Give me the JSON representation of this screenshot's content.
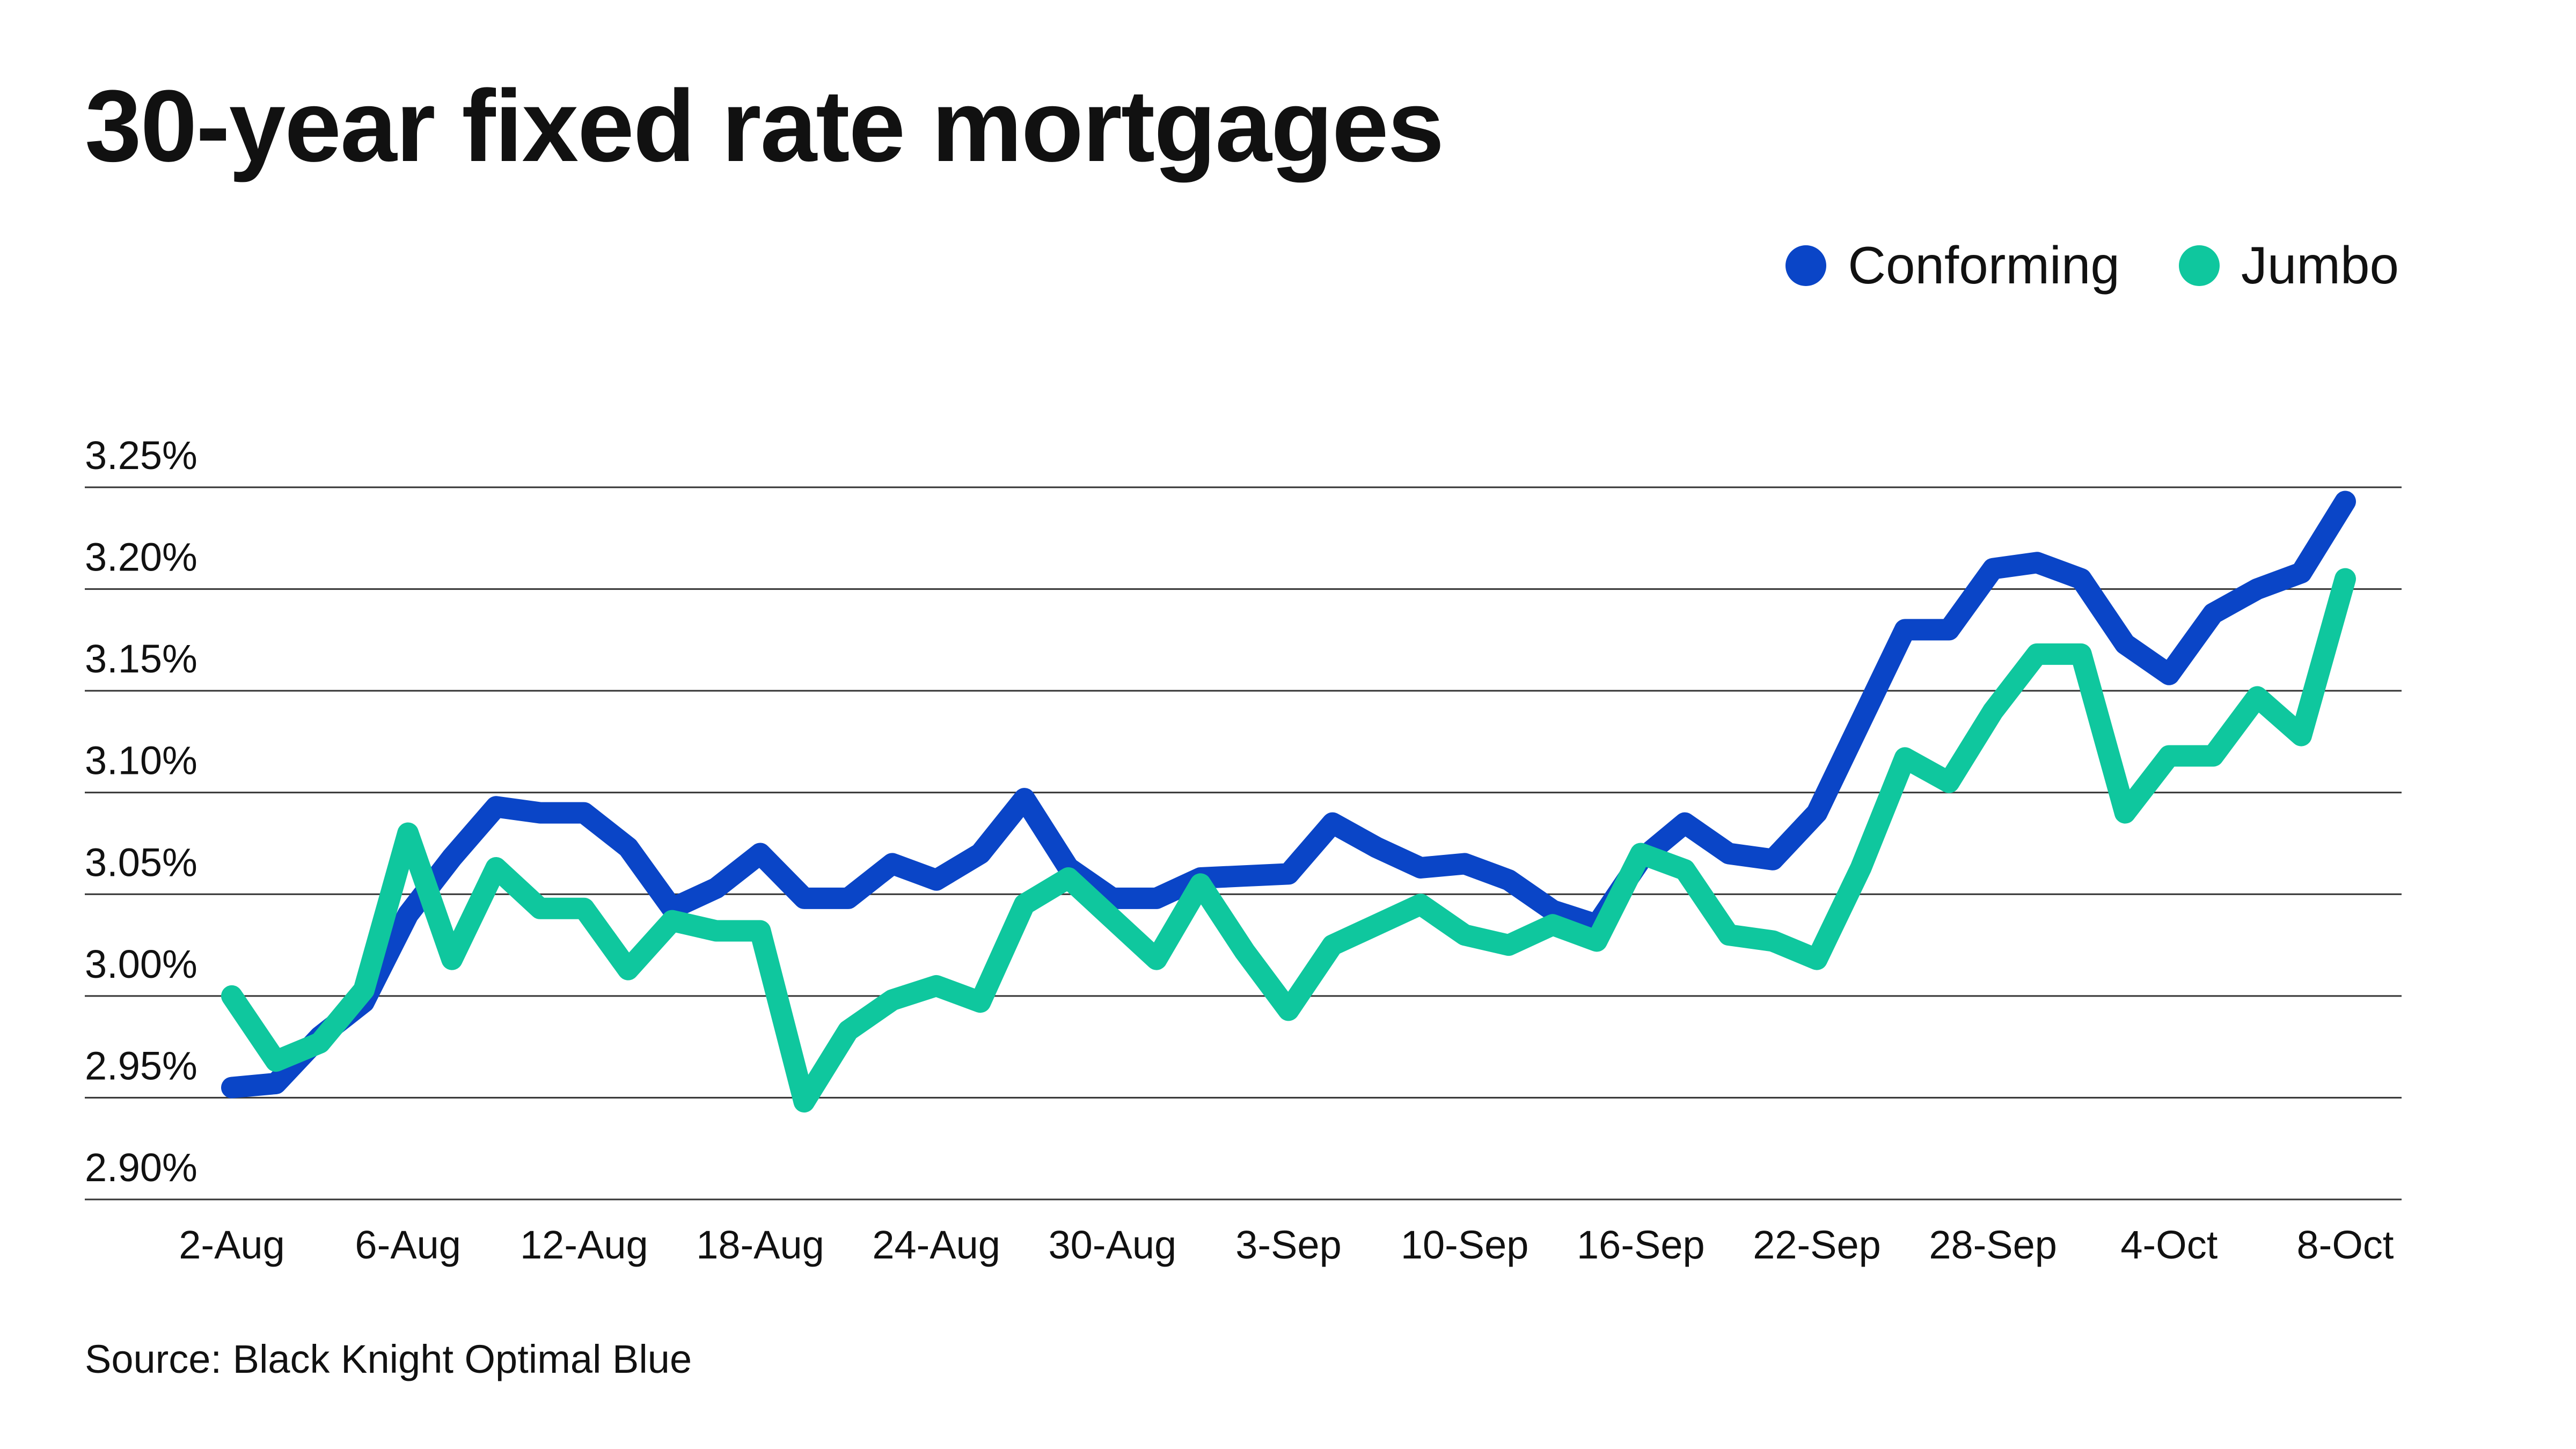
{
  "title": "30-year fixed rate mortgages",
  "source": "Source: Black Knight Optimal Blue",
  "colors": {
    "conforming": "#0a45c7",
    "jumbo": "#0fc79e",
    "grid": "#333333"
  },
  "chart_data": {
    "type": "line",
    "title": "30-year fixed rate mortgages",
    "xlabel": "",
    "ylabel": "",
    "ylim": [
      2.9,
      3.25
    ],
    "yticks": [
      2.9,
      2.95,
      3.0,
      3.05,
      3.1,
      3.15,
      3.2,
      3.25
    ],
    "ytick_labels": [
      "2.90%",
      "2.95%",
      "3.00%",
      "3.05%",
      "3.10%",
      "3.15%",
      "3.20%",
      "3.25%"
    ],
    "xtick_labels": [
      "2-Aug",
      "6-Aug",
      "12-Aug",
      "18-Aug",
      "24-Aug",
      "30-Aug",
      "3-Sep",
      "10-Sep",
      "16-Sep",
      "22-Sep",
      "28-Sep",
      "4-Oct",
      "8-Oct"
    ],
    "legend": "top-right",
    "grid": true,
    "x": [
      "2-Aug",
      "3-Aug",
      "4-Aug",
      "5-Aug",
      "6-Aug",
      "9-Aug",
      "10-Aug",
      "11-Aug",
      "12-Aug",
      "13-Aug",
      "16-Aug",
      "17-Aug",
      "18-Aug",
      "19-Aug",
      "20-Aug",
      "23-Aug",
      "24-Aug",
      "25-Aug",
      "26-Aug",
      "27-Aug",
      "30-Aug",
      "31-Aug",
      "1-Sep",
      "2-Sep",
      "3-Sep",
      "7-Sep",
      "8-Sep",
      "9-Sep",
      "10-Sep",
      "13-Sep",
      "14-Sep",
      "15-Sep",
      "16-Sep",
      "17-Sep",
      "20-Sep",
      "21-Sep",
      "22-Sep",
      "23-Sep",
      "24-Sep",
      "27-Sep",
      "28-Sep",
      "29-Sep",
      "30-Sep",
      "1-Oct",
      "4-Oct",
      "5-Oct",
      "6-Oct",
      "7-Oct",
      "8-Oct"
    ],
    "series": [
      {
        "name": "Conforming",
        "values": [
          2.955,
          2.957,
          2.98,
          2.997,
          3.04,
          3.068,
          3.093,
          3.09,
          3.09,
          3.073,
          3.043,
          3.053,
          3.07,
          3.048,
          3.048,
          3.065,
          3.057,
          3.07,
          3.097,
          3.063,
          3.048,
          3.048,
          3.058,
          3.059,
          3.06,
          3.085,
          3.073,
          3.063,
          3.065,
          3.057,
          3.042,
          3.035,
          3.067,
          3.085,
          3.07,
          3.067,
          3.09,
          3.135,
          3.18,
          3.18,
          3.21,
          3.213,
          3.205,
          3.173,
          3.158,
          3.188,
          3.2,
          3.208,
          3.243
        ]
      },
      {
        "name": "Jumbo",
        "values": [
          3.0,
          2.968,
          2.977,
          3.003,
          3.08,
          3.018,
          3.063,
          3.043,
          3.043,
          3.013,
          3.037,
          3.032,
          3.032,
          2.948,
          2.983,
          2.998,
          3.005,
          2.997,
          3.045,
          3.058,
          3.038,
          3.018,
          3.055,
          3.022,
          2.993,
          3.025,
          3.035,
          3.045,
          3.03,
          3.025,
          3.035,
          3.027,
          3.07,
          3.062,
          3.03,
          3.027,
          3.018,
          3.063,
          3.117,
          3.105,
          3.14,
          3.168,
          3.168,
          3.09,
          3.118,
          3.118,
          3.147,
          3.128,
          3.205
        ]
      }
    ]
  }
}
